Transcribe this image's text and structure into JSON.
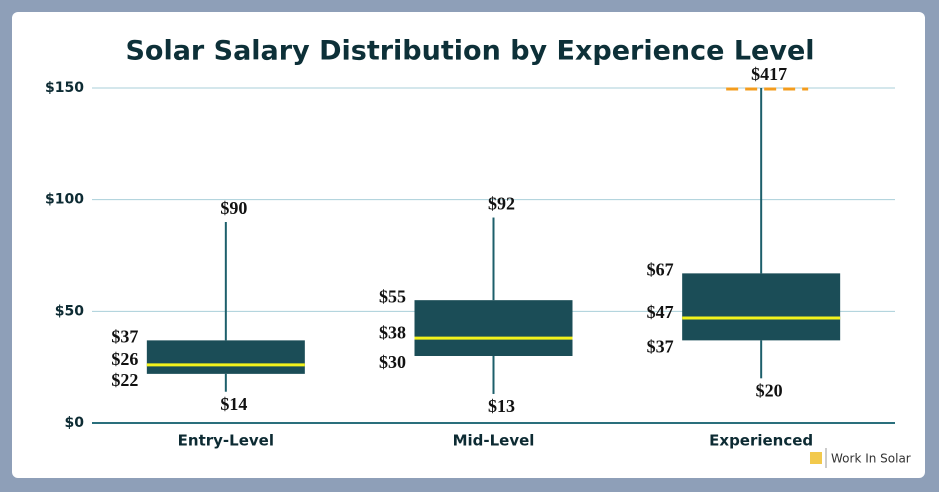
{
  "chart_data": {
    "type": "box",
    "title": "Solar Salary Distribution by Experience Level",
    "categories": [
      "Entry-Level",
      "Mid-Level",
      "Experienced"
    ],
    "min": {
      "values": [
        14,
        13,
        20
      ],
      "value_labels": [
        "$14",
        "$13",
        "$20"
      ]
    },
    "q1": {
      "values": [
        22,
        30,
        37
      ],
      "value_labels": [
        "$22",
        "$30",
        "$37"
      ]
    },
    "median": {
      "values": [
        26,
        38,
        47
      ],
      "value_labels": [
        "$26",
        "$38",
        "$47"
      ]
    },
    "q3": {
      "values": [
        37,
        55,
        67
      ],
      "value_labels": [
        "$37",
        "$55",
        "$67"
      ]
    },
    "max": {
      "values": [
        90,
        92,
        417
      ],
      "value_labels": [
        "$90",
        "$92",
        "$417"
      ]
    },
    "box_color": "#1b4d57",
    "median_color": "#f2f21c",
    "whisker_color": "#1d5f6b",
    "overflow_color": "#f39c1e",
    "ylim": [
      0,
      150
    ],
    "yticks": [
      {
        "value": 0,
        "label": "$0"
      },
      {
        "value": 50,
        "label": "$50"
      },
      {
        "value": 100,
        "label": "$100"
      },
      {
        "value": 150,
        "label": "$150"
      }
    ],
    "grid": true
  },
  "brand": "Work In Solar"
}
